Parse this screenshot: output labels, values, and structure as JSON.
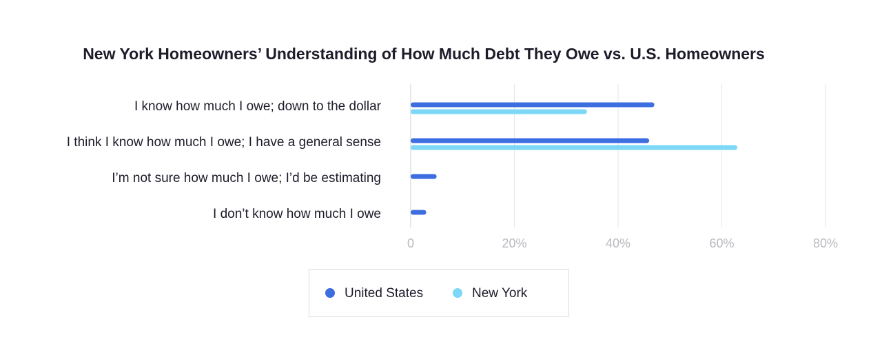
{
  "chart_data": {
    "type": "hbar",
    "title": "New York Homeowners’ Understanding of How Much Debt They Owe vs. U.S. Homeowners",
    "categories": [
      "I know how much I owe; down to the dollar",
      "I think I know how much I owe; I have a general sense",
      "I’m not sure how much I owe; I’d be estimating",
      "I don’t know how much I owe"
    ],
    "series": [
      {
        "name": "United States",
        "color": "#3e6de0",
        "values": [
          47,
          46,
          5,
          3
        ]
      },
      {
        "name": "New York",
        "color": "#7dd8f7",
        "values": [
          34,
          63,
          0,
          0
        ]
      }
    ],
    "xlim": [
      0,
      80
    ],
    "xticks": [
      0,
      {
        "value": 20,
        "label": "20%"
      },
      {
        "value": 40,
        "label": "40%"
      },
      {
        "value": 60,
        "label": "60%"
      },
      {
        "value": 80,
        "label": "80%"
      }
    ],
    "grid": true
  }
}
